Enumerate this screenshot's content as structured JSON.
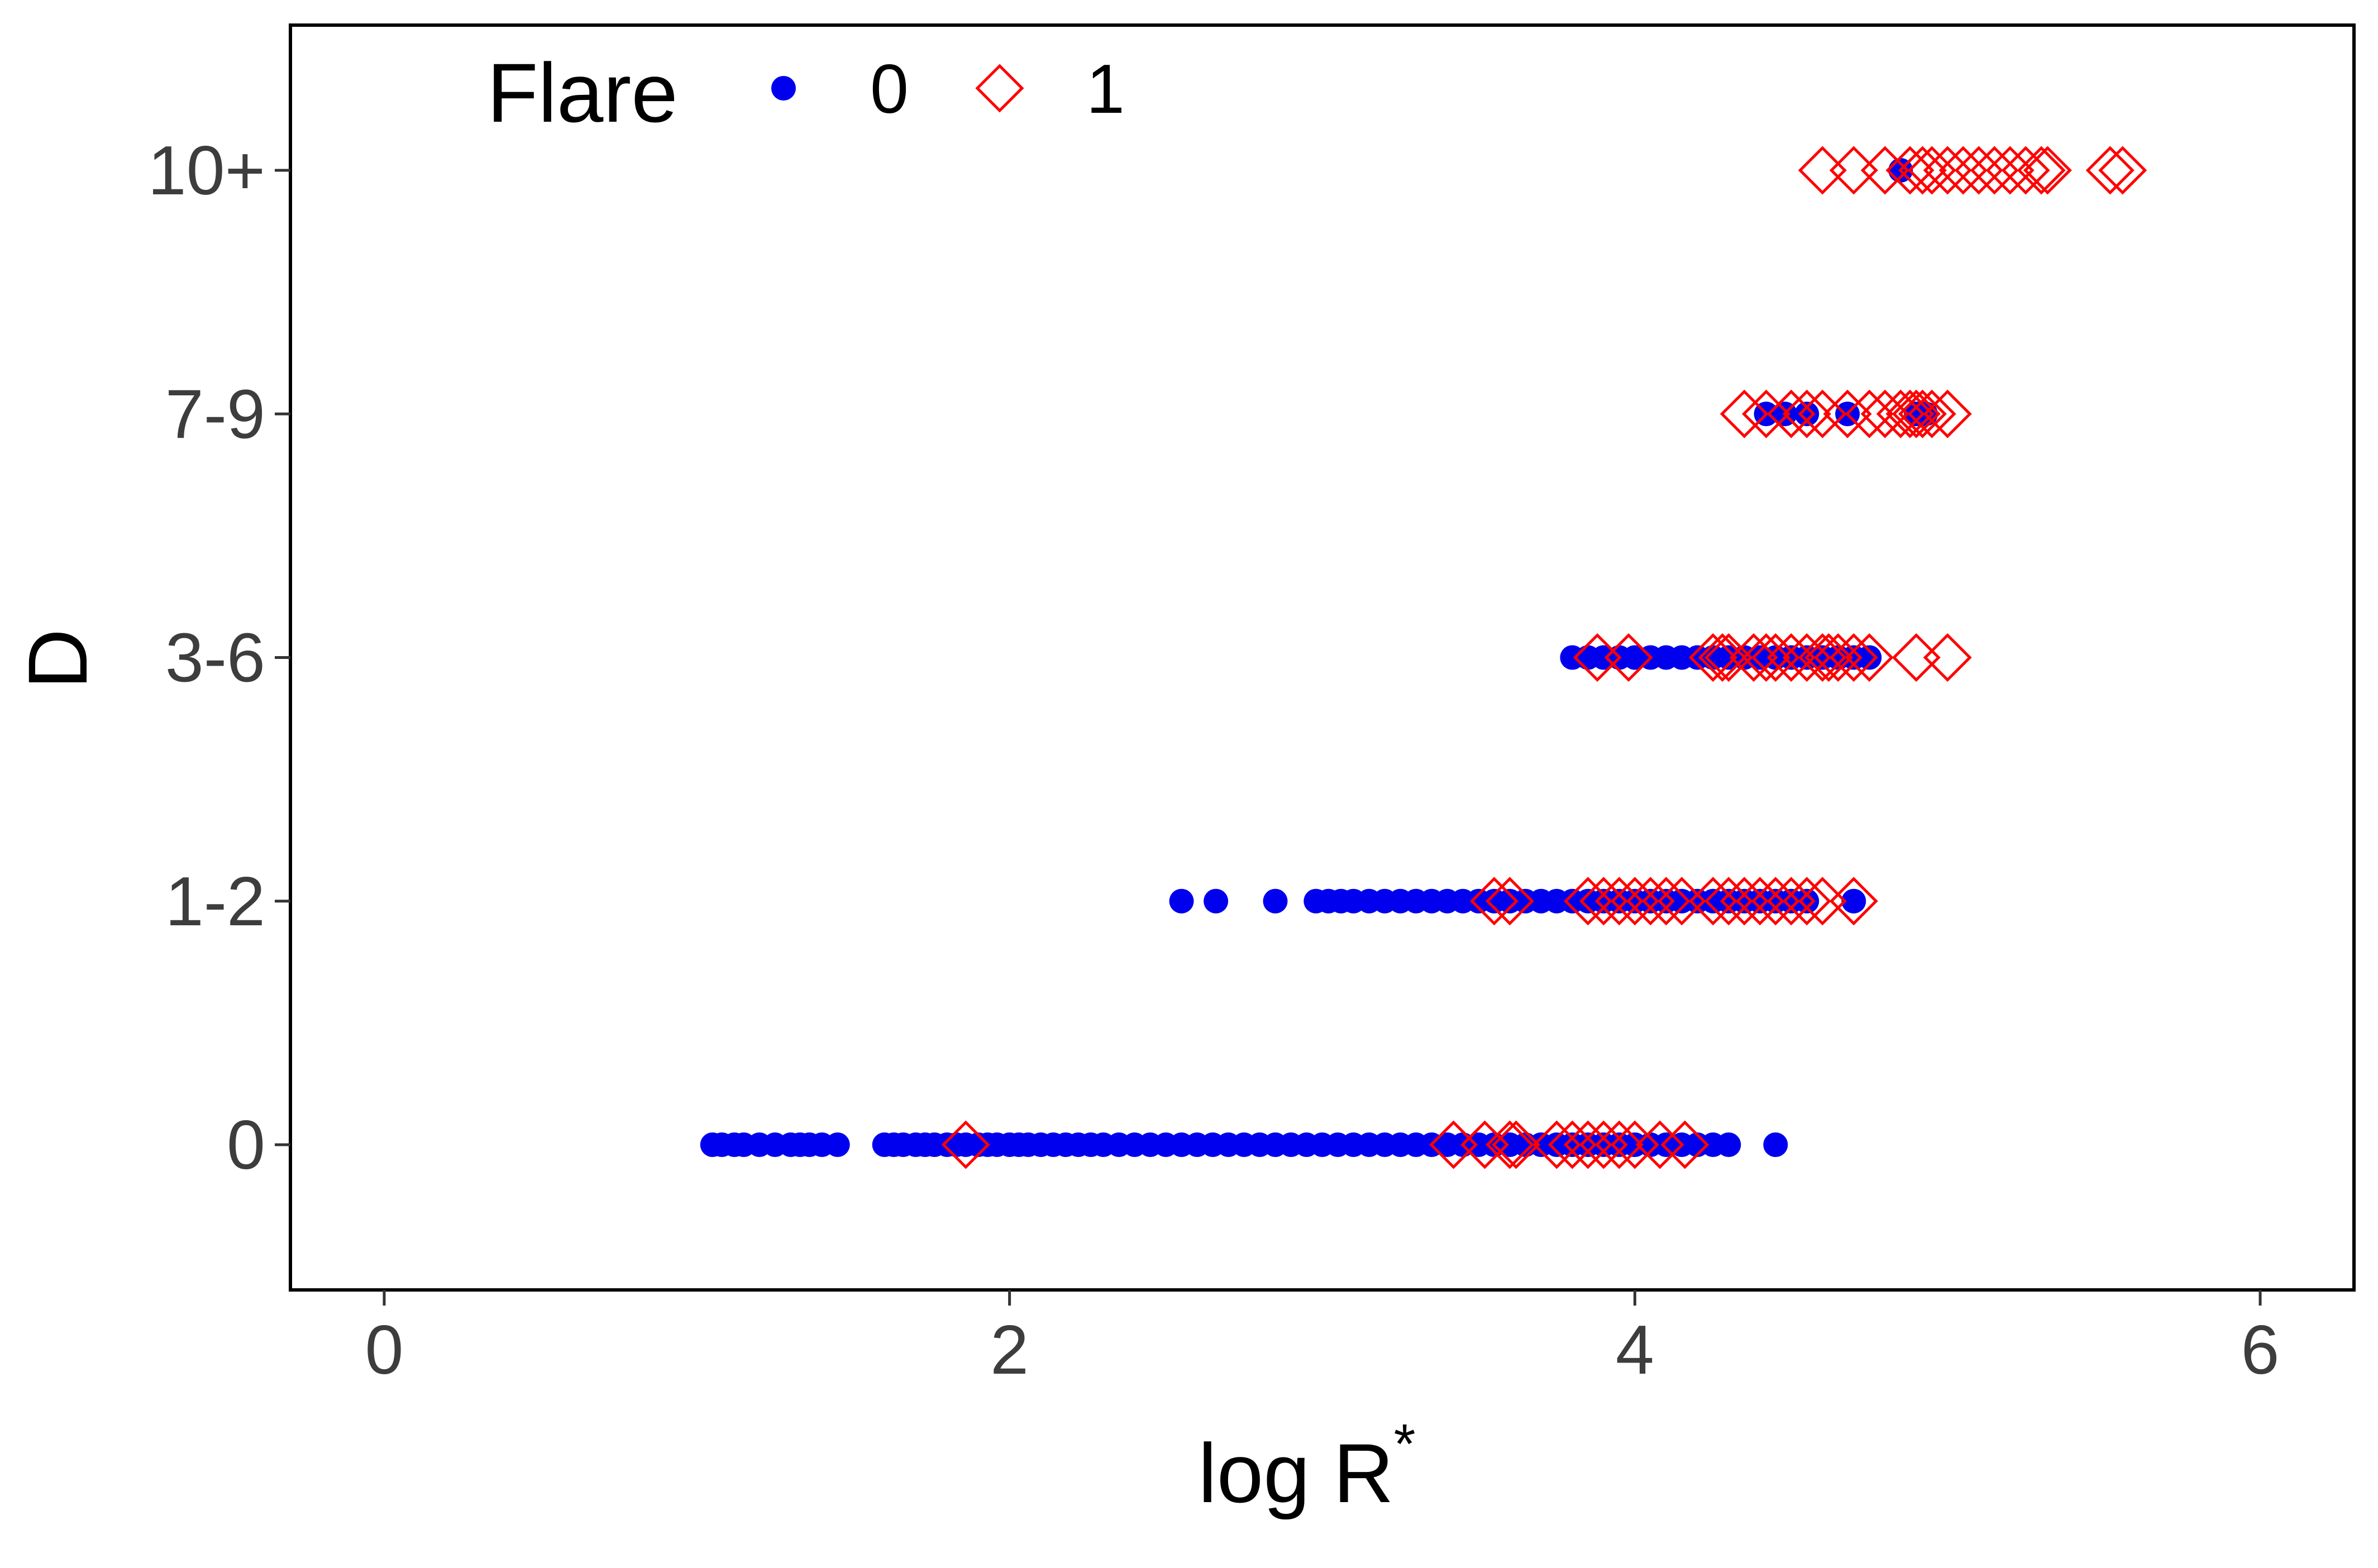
{
  "chart_data": {
    "type": "scatter",
    "xlabel": "log R",
    "xlabel_superscript": "*",
    "ylabel": "D",
    "xlim": [
      -0.3,
      6.3
    ],
    "xticks": [
      0,
      2,
      4,
      6
    ],
    "xtick_labels": [
      "0",
      "2",
      "4",
      "6"
    ],
    "categories": [
      "0",
      "1-2",
      "3-6",
      "7-9",
      "10+"
    ],
    "grid": false,
    "legend": {
      "title": "Flare",
      "placement": "top-left",
      "entries": [
        {
          "label": "0",
          "marker": "filled-circle",
          "color": "#0000ee"
        },
        {
          "label": "1",
          "marker": "open-diamond",
          "color": "#ff0000"
        }
      ]
    },
    "series": [
      {
        "name": "0",
        "color": "#0000ee",
        "marker": "filled-circle",
        "points": [
          {
            "category": "0",
            "x": [
              1.05,
              1.08,
              1.12,
              1.15,
              1.2,
              1.25,
              1.3,
              1.33,
              1.36,
              1.4,
              1.45,
              1.6,
              1.63,
              1.66,
              1.7,
              1.73,
              1.76,
              1.8,
              1.83,
              1.86,
              1.9,
              1.93,
              1.96,
              2.0,
              2.03,
              2.06,
              2.1,
              2.14,
              2.18,
              2.22,
              2.26,
              2.3,
              2.35,
              2.4,
              2.45,
              2.5,
              2.55,
              2.6,
              2.65,
              2.7,
              2.75,
              2.8,
              2.85,
              2.9,
              2.95,
              3.0,
              3.05,
              3.1,
              3.15,
              3.2,
              3.25,
              3.3,
              3.35,
              3.4,
              3.45,
              3.5,
              3.55,
              3.6,
              3.65,
              3.7,
              3.75,
              3.8,
              3.85,
              3.9,
              3.95,
              4.0,
              4.05,
              4.1,
              4.15,
              4.2,
              4.25,
              4.3,
              4.45
            ]
          },
          {
            "category": "1-2",
            "x": [
              2.55,
              2.66,
              2.85,
              2.98,
              3.02,
              3.06,
              3.1,
              3.15,
              3.2,
              3.25,
              3.3,
              3.35,
              3.4,
              3.45,
              3.5,
              3.55,
              3.6,
              3.65,
              3.7,
              3.75,
              3.8,
              3.85,
              3.9,
              3.95,
              4.0,
              4.05,
              4.1,
              4.15,
              4.2,
              4.25,
              4.3,
              4.35,
              4.4,
              4.45,
              4.5,
              4.55,
              4.7
            ]
          },
          {
            "category": "3-6",
            "x": [
              3.8,
              3.85,
              3.9,
              3.95,
              4.0,
              4.05,
              4.1,
              4.15,
              4.2,
              4.25,
              4.3,
              4.35,
              4.4,
              4.45,
              4.5,
              4.55,
              4.6,
              4.65,
              4.7,
              4.75
            ]
          },
          {
            "category": "7-9",
            "x": [
              4.42,
              4.48,
              4.55,
              4.68,
              4.9,
              4.93
            ]
          },
          {
            "category": "10+",
            "x": [
              4.85
            ]
          }
        ]
      },
      {
        "name": "1",
        "color": "#ff0000",
        "marker": "open-diamond",
        "points": [
          {
            "category": "0",
            "x": [
              1.86,
              3.42,
              3.52,
              3.6,
              3.62,
              3.75,
              3.8,
              3.85,
              3.9,
              3.95,
              4.0,
              4.08,
              4.16
            ]
          },
          {
            "category": "1-2",
            "x": [
              3.55,
              3.6,
              3.85,
              3.9,
              3.95,
              4.0,
              4.05,
              4.1,
              4.15,
              4.25,
              4.3,
              4.35,
              4.4,
              4.45,
              4.5,
              4.55,
              4.6,
              4.7
            ]
          },
          {
            "category": "3-6",
            "x": [
              3.88,
              3.98,
              4.25,
              4.28,
              4.3,
              4.38,
              4.42,
              4.45,
              4.5,
              4.55,
              4.6,
              4.62,
              4.65,
              4.7,
              4.75,
              4.9,
              5.0
            ]
          },
          {
            "category": "7-9",
            "x": [
              4.35,
              4.42,
              4.5,
              4.55,
              4.6,
              4.68,
              4.75,
              4.8,
              4.85,
              4.88,
              4.9,
              4.92,
              4.95,
              5.0
            ]
          },
          {
            "category": "10+",
            "x": [
              4.6,
              4.7,
              4.8,
              4.88,
              4.92,
              4.95,
              5.0,
              5.05,
              5.1,
              5.15,
              5.2,
              5.25,
              5.3,
              5.32,
              5.52,
              5.56
            ]
          }
        ]
      }
    ]
  }
}
